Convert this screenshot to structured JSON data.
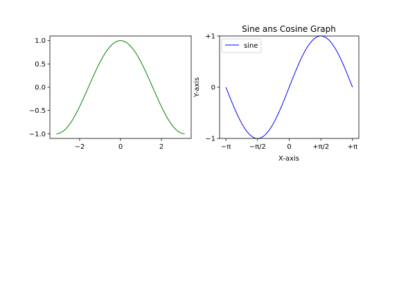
{
  "chart_data": [
    {
      "type": "line",
      "title": "",
      "xlabel": "",
      "ylabel": "",
      "xlim": [
        -3.4557,
        3.4557
      ],
      "ylim": [
        -1.1,
        1.1
      ],
      "xticks": [
        {
          "value": -2,
          "label": "−2"
        },
        {
          "value": 0,
          "label": "0"
        },
        {
          "value": 2,
          "label": "2"
        }
      ],
      "yticks": [
        {
          "value": -1.0,
          "label": "−1.0"
        },
        {
          "value": -0.5,
          "label": "−0.5"
        },
        {
          "value": 0.0,
          "label": "0.0"
        },
        {
          "value": 0.5,
          "label": "0.5"
        },
        {
          "value": 1.0,
          "label": "1.0"
        }
      ],
      "series": [
        {
          "function": "cos",
          "x_range": [
            -3.1416,
            3.1416
          ],
          "samples": 256,
          "color": "#008000"
        }
      ],
      "legend": null,
      "grid": false
    },
    {
      "type": "line",
      "title": "Sine ans Cosine Graph",
      "xlabel": "X-axis",
      "ylabel": "Y-axis",
      "xlim": [
        -3.4557,
        3.4557
      ],
      "ylim": [
        -1.0,
        1.0
      ],
      "xticks": [
        {
          "value": -3.1416,
          "label": "−π"
        },
        {
          "value": -1.5708,
          "label": "−π/2"
        },
        {
          "value": 0,
          "label": "0"
        },
        {
          "value": 1.5708,
          "label": "+π/2"
        },
        {
          "value": 3.1416,
          "label": "+π"
        }
      ],
      "yticks": [
        {
          "value": -1,
          "label": "−1"
        },
        {
          "value": 0,
          "label": "0"
        },
        {
          "value": 1,
          "label": "+1"
        }
      ],
      "series": [
        {
          "name": "sine",
          "function": "sin",
          "x_range": [
            -3.1416,
            3.1416
          ],
          "samples": 256,
          "color": "#0000ff"
        }
      ],
      "legend": "top-left",
      "grid": false
    }
  ]
}
